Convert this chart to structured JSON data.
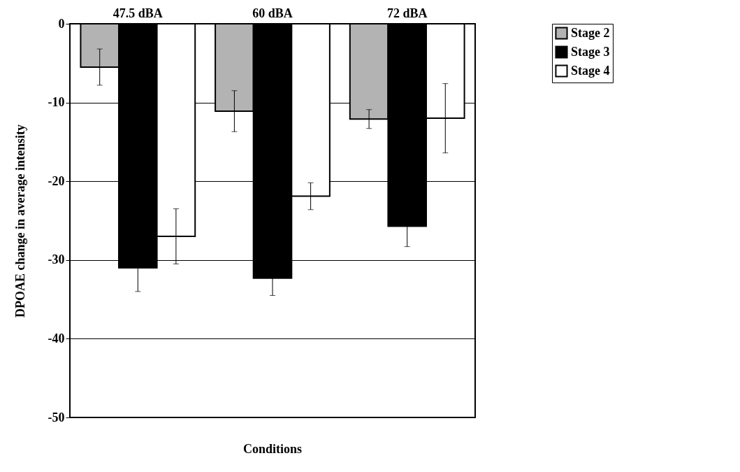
{
  "chart_data": {
    "type": "bar",
    "xlabel": "Conditions",
    "ylabel": "DPOAE change in average intensity",
    "categories": [
      "47.5 dBA",
      "60 dBA",
      "72 dBA"
    ],
    "series": [
      {
        "name": "Stage 2",
        "color": "#b3b3b3",
        "values": [
          -5.5,
          -11.1,
          -12.1
        ],
        "errors": [
          2.3,
          2.6,
          1.2
        ]
      },
      {
        "name": "Stage 3",
        "color": "#000000",
        "values": [
          -31,
          -32.3,
          -25.7
        ],
        "errors": [
          3,
          2.2,
          2.6
        ]
      },
      {
        "name": "Stage 4",
        "color": "#ffffff",
        "values": [
          -27,
          -21.9,
          -12
        ],
        "errors": [
          3.5,
          1.7,
          4.4
        ]
      }
    ],
    "ylim": [
      -50,
      0
    ],
    "yticks": [
      -50,
      -40,
      -30,
      -20,
      -10,
      0
    ],
    "grid": "y",
    "legend": "right"
  }
}
